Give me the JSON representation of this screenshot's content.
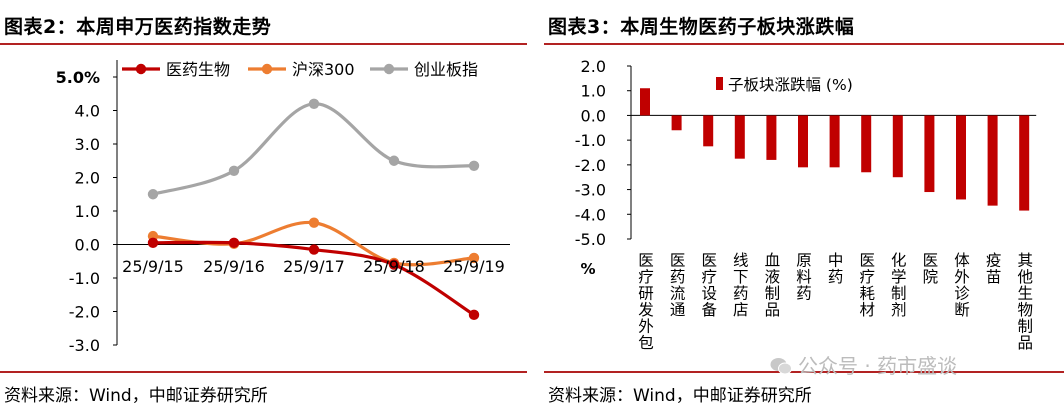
{
  "left": {
    "title": "图表2：本周申万医药指数走势",
    "source": "资料来源：Wind，中邮证券研究所",
    "chart_data": {
      "type": "line",
      "x": [
        "25/9/15",
        "25/9/16",
        "25/9/17",
        "25/9/18",
        "25/9/19"
      ],
      "yticks": [
        "5.0%",
        "4.0",
        "3.0",
        "2.0",
        "1.0",
        "0.0",
        "-1.0",
        "-2.0",
        "-3.0"
      ],
      "ylim": [
        -3,
        5
      ],
      "series": [
        {
          "name": "医药生物",
          "color": "#c00000",
          "values": [
            0.05,
            0.05,
            -0.15,
            -0.6,
            -2.1
          ]
        },
        {
          "name": "沪深300",
          "color": "#ed7d31",
          "values": [
            0.25,
            0.02,
            0.65,
            -0.55,
            -0.4
          ]
        },
        {
          "name": "创业板指",
          "color": "#a5a5a5",
          "values": [
            1.5,
            2.2,
            4.2,
            2.5,
            2.35
          ]
        }
      ]
    }
  },
  "right": {
    "title": "图表3：本周生物医药子板块涨跌幅",
    "source": "资料来源：Wind，中邮证券研究所",
    "chart_data": {
      "type": "bar",
      "legend": "子板块涨跌幅 (%)",
      "unit_label": "%",
      "color": "#c00000",
      "yticks": [
        "2.0",
        "1.0",
        "0.0",
        "-1.0",
        "-2.0",
        "-3.0",
        "-4.0",
        "-5.0"
      ],
      "ylim": [
        -5,
        2
      ],
      "categories": [
        "医疗研发外包",
        "医药流通",
        "医疗设备",
        "线下药店",
        "血液制品",
        "原料药",
        "中药",
        "医疗耗材",
        "化学制剂",
        "医院",
        "体外诊断",
        "疫苗",
        "其他生物制品"
      ],
      "values": [
        1.1,
        -0.6,
        -1.25,
        -1.75,
        -1.8,
        -2.1,
        -2.1,
        -2.3,
        -2.5,
        -3.1,
        -3.4,
        -3.65,
        -3.85
      ]
    }
  },
  "watermark": {
    "text": "公众号 · 药市盛谈",
    "icon": "wechat-icon"
  }
}
